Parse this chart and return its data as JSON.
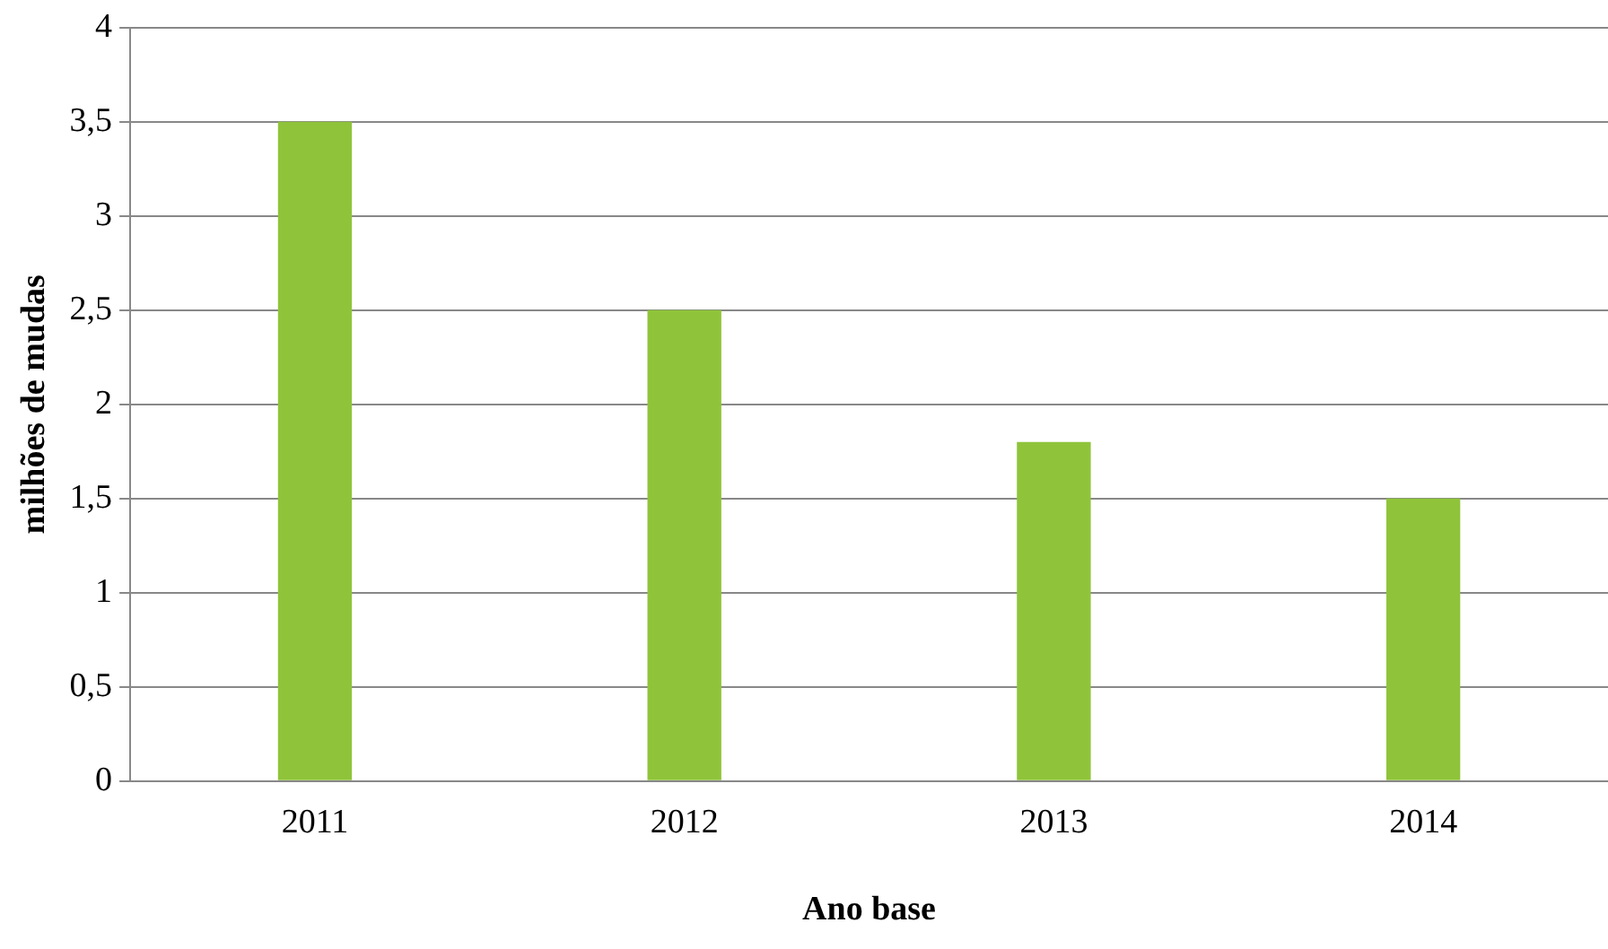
{
  "chart_data": {
    "type": "bar",
    "xlabel": "Ano base",
    "ylabel": "milhões de mudas",
    "categories": [
      "2011",
      "2012",
      "2013",
      "2014"
    ],
    "values": [
      3.5,
      2.5,
      1.8,
      1.5
    ],
    "color": "#8fc43a",
    "ylim": [
      0,
      4
    ],
    "yticks": [
      0,
      {
        "value": 0.5,
        "label": "0,5"
      },
      1,
      {
        "value": 1.5,
        "label": "1,5"
      },
      2,
      {
        "value": 2.5,
        "label": "2,5"
      },
      3,
      {
        "value": 3.5,
        "label": "3,5"
      },
      4
    ],
    "grid": "y",
    "legend": false
  }
}
